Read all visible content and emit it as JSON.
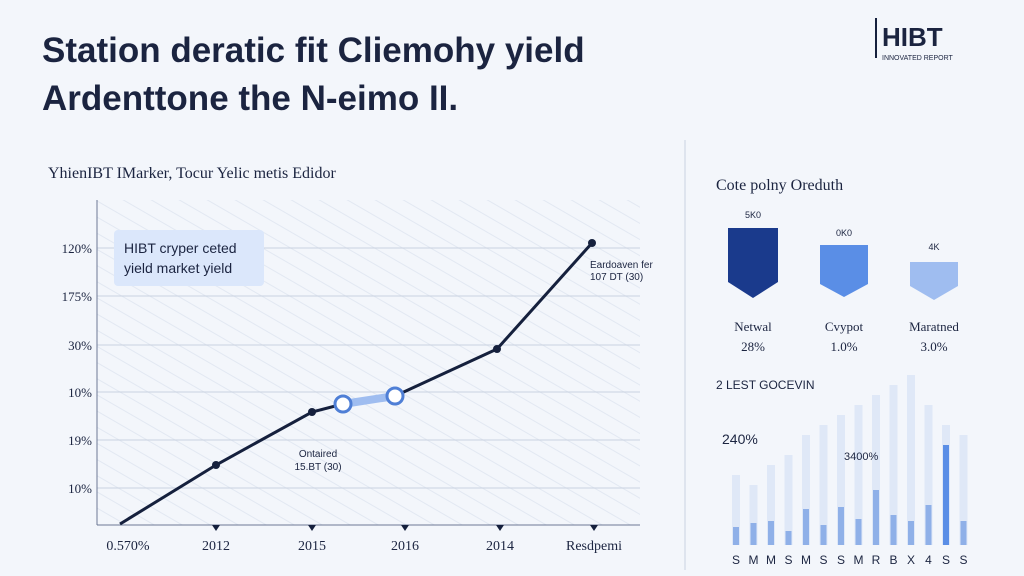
{
  "header": {
    "title_lines": [
      "Station deratic fit Cliemohy yield",
      "Ardenttone the N-eimo II."
    ],
    "logo": "HIBT",
    "logo_subtitle": "INNOVATED REPORT"
  },
  "line_panel": {
    "subtitle": "YhienIBT IMarker, Tocur Yelic metis Edidor",
    "y_labels": [
      "120%",
      "175%",
      "30%",
      "10%",
      "19%",
      "10%"
    ],
    "x_labels": [
      "0.570%",
      "2012",
      "2015",
      "2016",
      "2014",
      "Resdpemi"
    ],
    "callout": [
      "HIBT cryper ceted",
      "yield market yield"
    ],
    "annotation_right": [
      "Eardoaven fer",
      "107 DT (30)"
    ],
    "annotation_mid": [
      "Ontaired",
      "15.BT (30)"
    ]
  },
  "side_panel": {
    "title": "Cote polny Oreduth",
    "shields": [
      {
        "top": "5K0",
        "name": "Netwal",
        "value": "28%"
      },
      {
        "top": "0K0",
        "name": "Cvypot",
        "value": "1.0%"
      },
      {
        "top": "4K",
        "name": "Maratned",
        "value": "3.0%"
      }
    ],
    "section": "2 LEST GOCEVIN",
    "big_label": "240%",
    "mid_label": "3400%",
    "bar_labels": [
      "S",
      "M",
      "M",
      "S",
      "M",
      "S",
      "S",
      "M",
      "R",
      "B",
      "X",
      "4",
      "S",
      "S"
    ]
  }
}
